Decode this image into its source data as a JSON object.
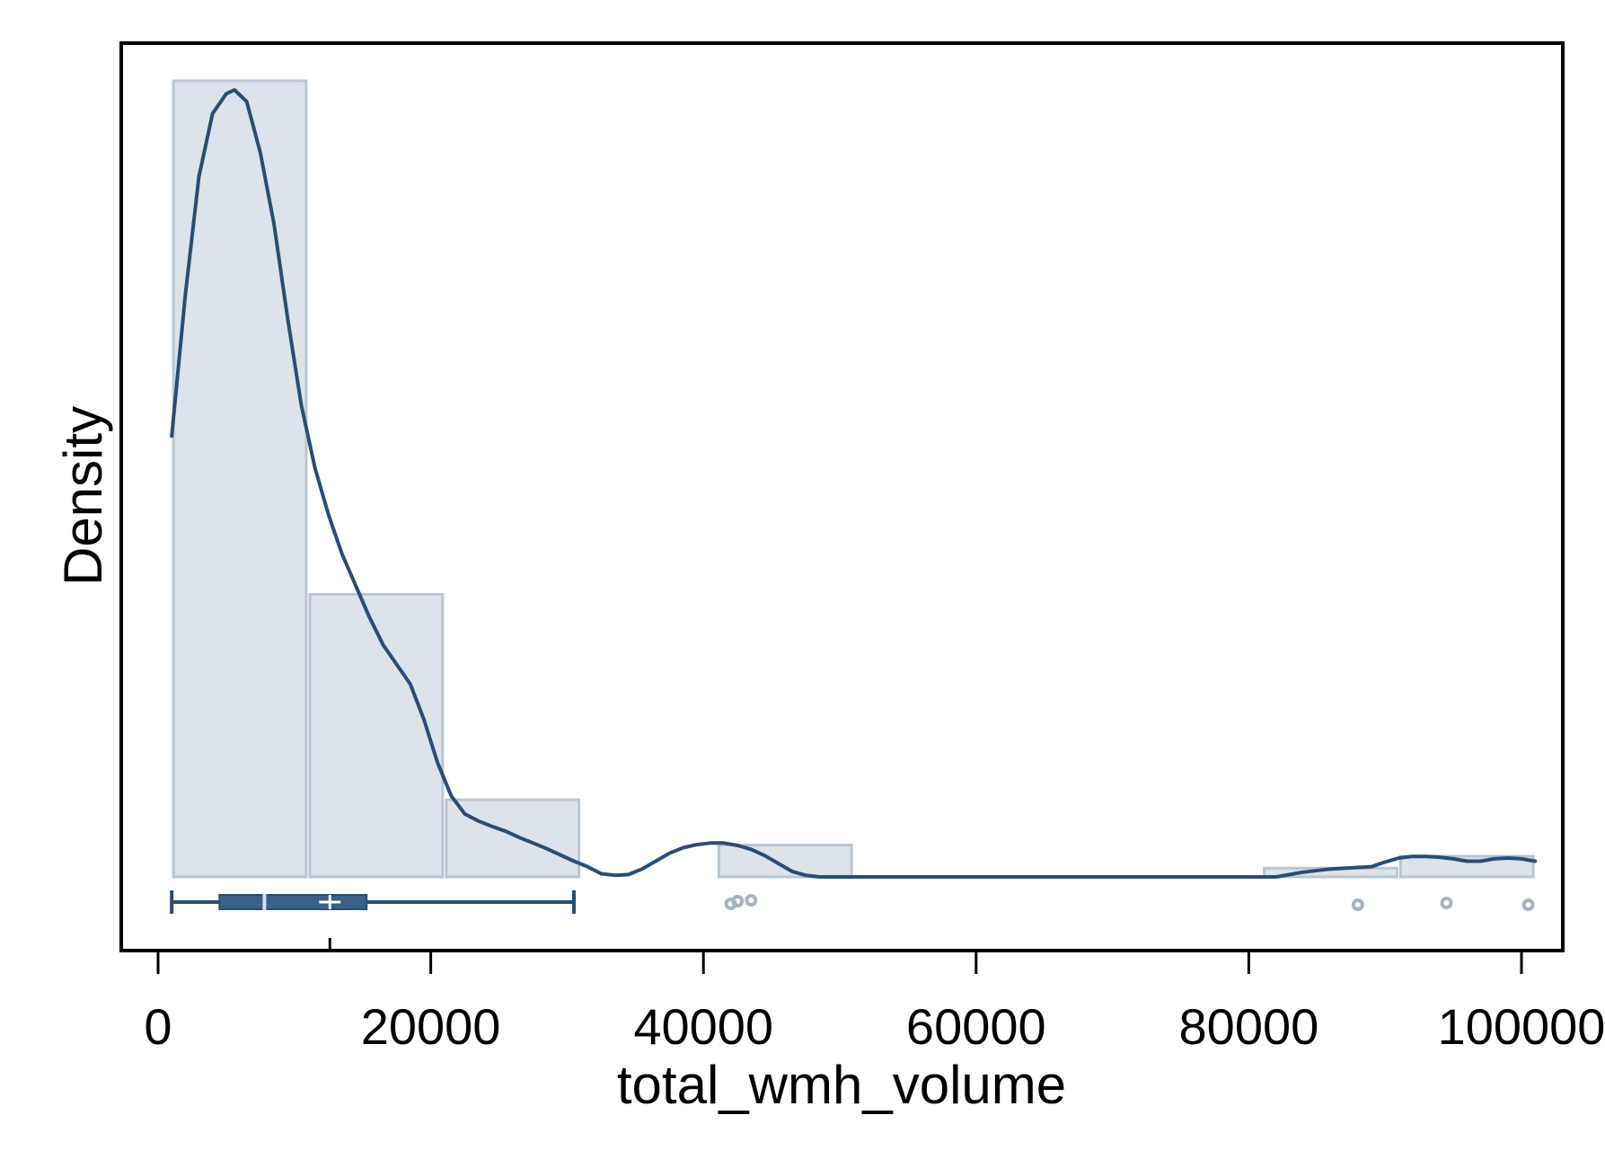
{
  "chart_data": {
    "type": "histogram",
    "title": "",
    "xlabel": "total_wmh_volume",
    "ylabel": "Density",
    "xlim": [
      0,
      102500
    ],
    "x_ticks": [
      0,
      20000,
      40000,
      60000,
      80000,
      100000
    ],
    "x_tick_labels": [
      "0",
      "20000",
      "40000",
      "60000",
      "80000",
      "100000"
    ],
    "y_ticks_shown": false,
    "grid": false,
    "legend": "none",
    "colors": {
      "bar_fill": "#dce3ea",
      "bar_stroke": "#b9c6d2",
      "line": "#294d75",
      "box": "#3a5f88",
      "outlier": "#a8b4c2"
    },
    "histogram": {
      "bin_edges": [
        1000,
        11000,
        21000,
        31000,
        41000,
        51000,
        61000,
        71000,
        81000,
        91000,
        101000
      ],
      "relative_heights": [
        1.0,
        0.355,
        0.097,
        0,
        0.04,
        0,
        0,
        0,
        0.011,
        0.026
      ]
    },
    "density_curve": {
      "x": [
        1000,
        2000,
        3000,
        4000,
        5000,
        5600,
        6500,
        7500,
        8500,
        9500,
        10500,
        11500,
        12500,
        13500,
        14500,
        15500,
        16500,
        17500,
        18500,
        19500,
        20500,
        21500,
        22500,
        23500,
        24500,
        25500,
        26500,
        27500,
        28500,
        29500,
        30500,
        31500,
        32500,
        33500,
        34500,
        35500,
        36500,
        37500,
        38500,
        39500,
        40500,
        41500,
        42500,
        43500,
        44500,
        45500,
        46500,
        47500,
        48500,
        49500,
        50000,
        55000,
        60000,
        70000,
        80000,
        82000,
        84000,
        86000,
        88000,
        89000,
        90000,
        91000,
        92000,
        93000,
        94000,
        95000,
        96000,
        97000,
        98000,
        99000,
        100000,
        101000
      ],
      "y": [
        0.56,
        0.74,
        0.89,
        0.97,
        0.995,
        1.0,
        0.985,
        0.92,
        0.83,
        0.71,
        0.6,
        0.52,
        0.46,
        0.41,
        0.37,
        0.33,
        0.295,
        0.27,
        0.245,
        0.2,
        0.145,
        0.103,
        0.08,
        0.071,
        0.064,
        0.058,
        0.05,
        0.043,
        0.036,
        0.028,
        0.02,
        0.013,
        0.004,
        0.002,
        0.003,
        0.01,
        0.02,
        0.03,
        0.037,
        0.041,
        0.043,
        0.043,
        0.04,
        0.035,
        0.027,
        0.017,
        0.007,
        0.002,
        0.0,
        0.0,
        0.0,
        0.0,
        0.0,
        0.0,
        0.0,
        0.0,
        0.006,
        0.01,
        0.012,
        0.013,
        0.019,
        0.024,
        0.026,
        0.026,
        0.025,
        0.023,
        0.02,
        0.02,
        0.023,
        0.024,
        0.023,
        0.02
      ]
    },
    "boxplot": {
      "lower_whisker": 1000,
      "q1": 4500,
      "median": 7800,
      "mean": 12600,
      "q3": 15300,
      "upper_whisker": 30500,
      "outliers": [
        42000,
        42500,
        43500,
        88000,
        94500,
        100500
      ]
    }
  }
}
